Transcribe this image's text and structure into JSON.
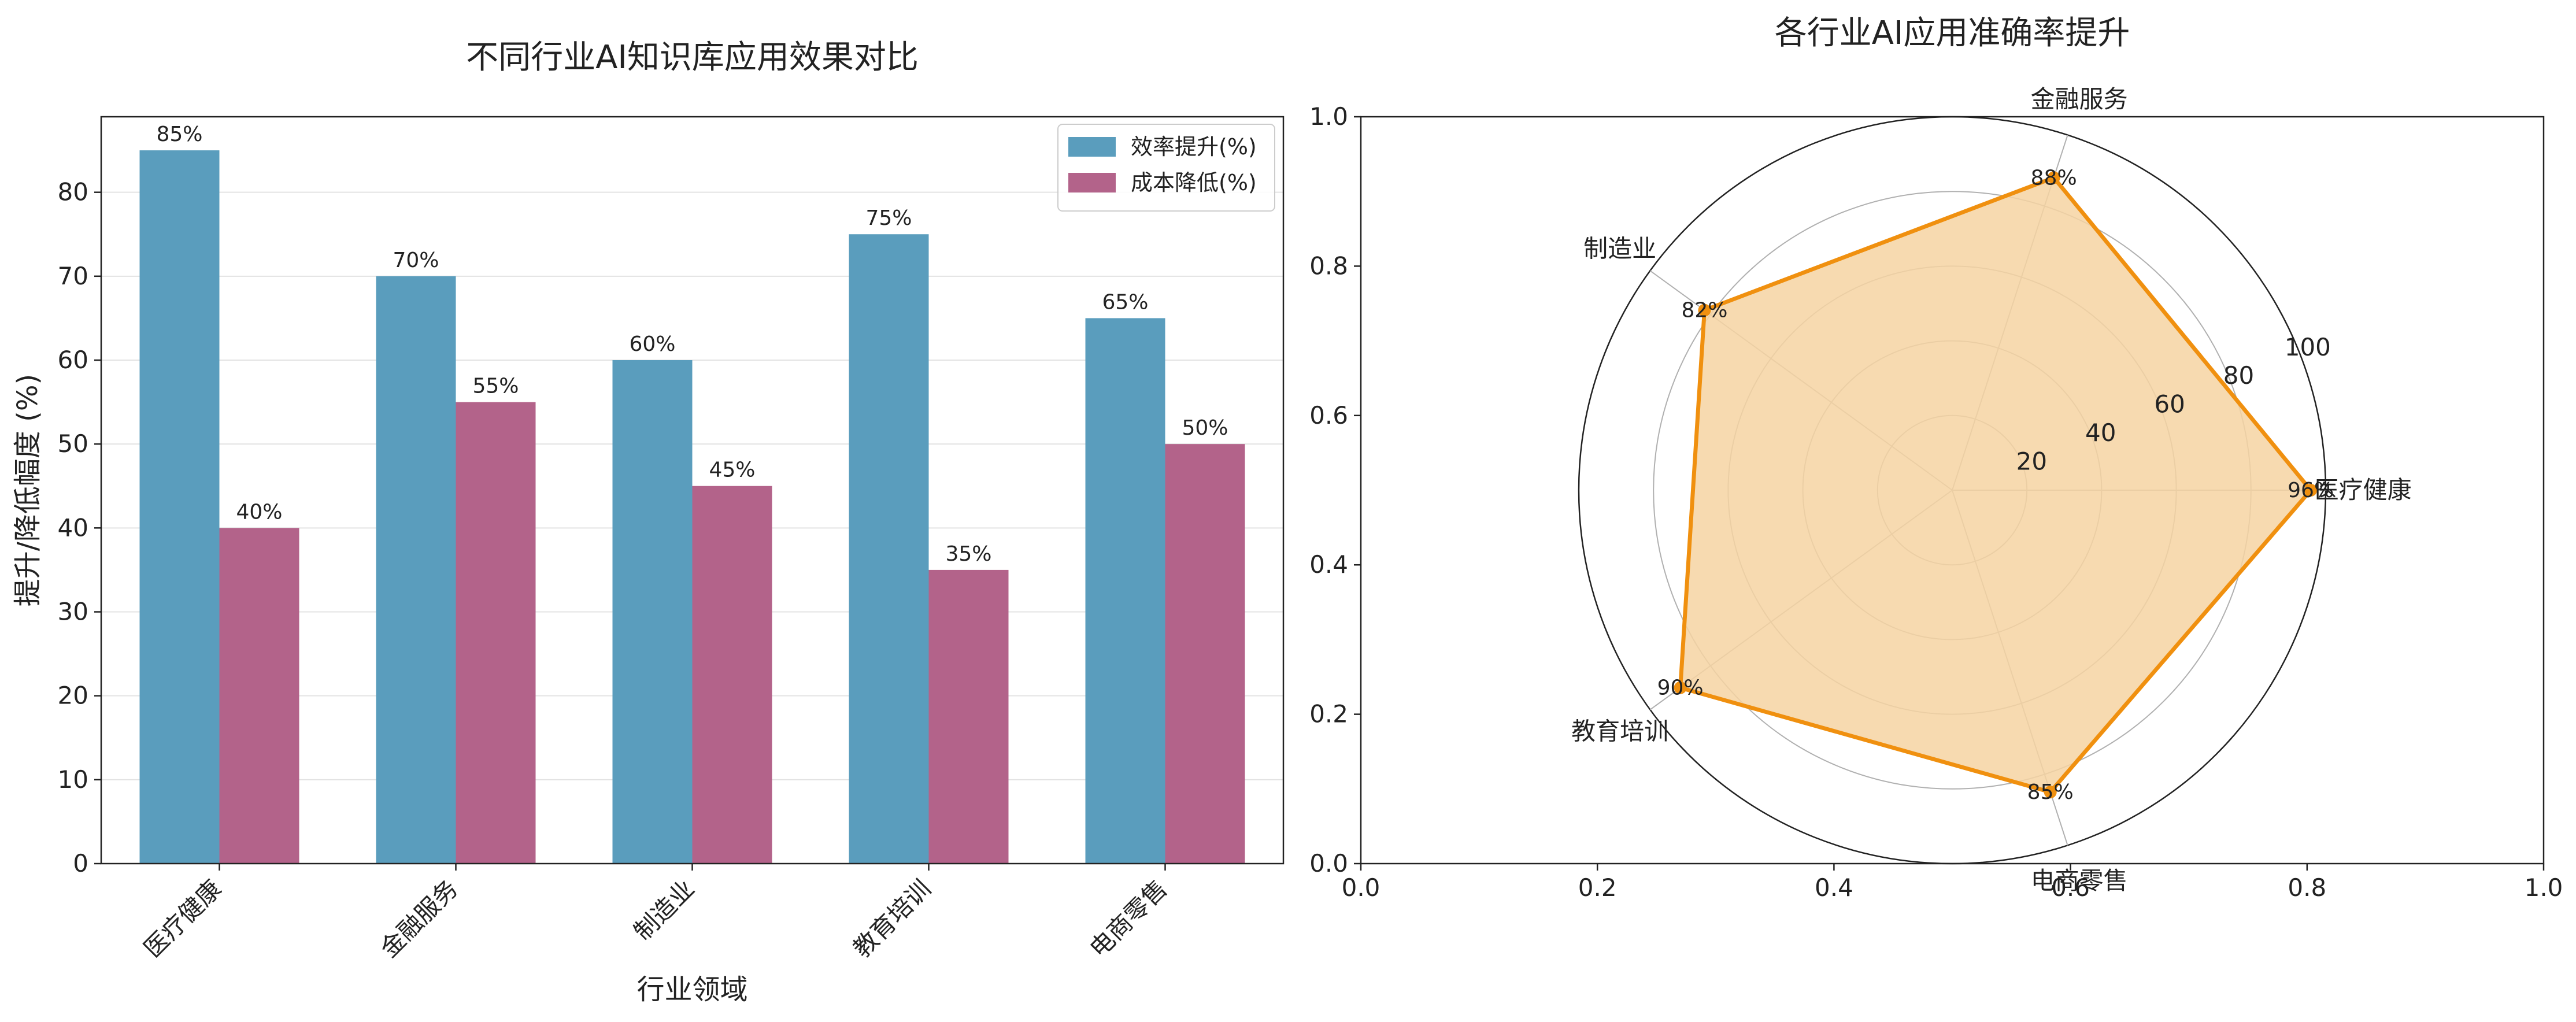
{
  "chart_data": [
    {
      "type": "bar",
      "title": "不同行业AI知识库应用效果对比",
      "xlabel": "行业领域",
      "ylabel": "提升/降低幅度 (%)",
      "categories": [
        "医疗健康",
        "金融服务",
        "制造业",
        "教育培训",
        "电商零售"
      ],
      "ylim": [
        0,
        89
      ],
      "yticks": [
        "0",
        "10",
        "20",
        "30",
        "40",
        "50",
        "60",
        "70",
        "80"
      ],
      "grid": true,
      "legend_position": "top-right",
      "series": [
        {
          "name": "效率提升(%)",
          "color": "#5a9dbd",
          "values": [
            85,
            70,
            60,
            75,
            65
          ],
          "labels": [
            "85%",
            "70%",
            "60%",
            "75%",
            "65%"
          ]
        },
        {
          "name": "成本降低(%)",
          "color": "#b3638a",
          "values": [
            40,
            55,
            45,
            35,
            50
          ],
          "labels": [
            "40%",
            "55%",
            "45%",
            "35%",
            "50%"
          ]
        }
      ]
    },
    {
      "type": "radar",
      "title": "各行业AI应用准确率提升",
      "categories": [
        "医疗健康",
        "金融服务",
        "制造业",
        "教育培训",
        "电商零售"
      ],
      "values": [
        96,
        88,
        82,
        90,
        85
      ],
      "value_labels": [
        "96%",
        "88%",
        "82%",
        "90%",
        "85%"
      ],
      "rmax": 100,
      "rticks": [
        "20",
        "40",
        "60",
        "80",
        "100"
      ],
      "line_color": "#f0900f",
      "fill_color": "#f6d4a2",
      "cartesian_ticks": [
        "0.0",
        "0.2",
        "0.4",
        "0.6",
        "0.8",
        "1.0"
      ]
    }
  ]
}
